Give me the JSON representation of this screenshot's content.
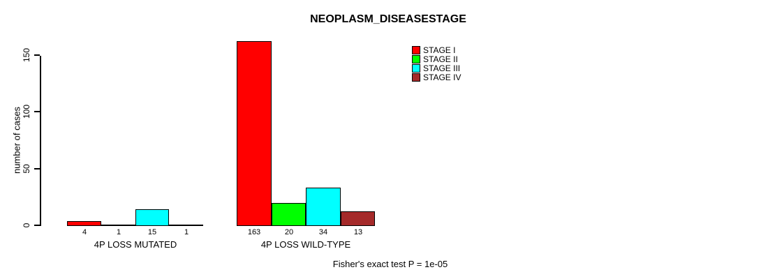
{
  "title": "NEOPLASM_DISEASESTAGE",
  "footer": "Fisher's exact test P = 1e-05",
  "chart_data": {
    "type": "bar",
    "title": "NEOPLASM_DISEASESTAGE",
    "xlabel": "",
    "ylabel": "number of cases",
    "ylim": [
      0,
      163
    ],
    "yticks": [
      0,
      50,
      100,
      150
    ],
    "grid": false,
    "legend_position": "top-right",
    "categories": [
      "4P LOSS MUTATED",
      "4P LOSS WILD-TYPE"
    ],
    "series": [
      {
        "name": "STAGE I",
        "color": "#FF0000",
        "values": [
          4,
          163
        ]
      },
      {
        "name": "STAGE II",
        "color": "#00FF00",
        "values": [
          1,
          20
        ]
      },
      {
        "name": "STAGE III",
        "color": "#00FFFF",
        "values": [
          15,
          34
        ]
      },
      {
        "name": "STAGE IV",
        "color": "#A52A2A",
        "values": [
          1,
          13
        ]
      }
    ],
    "bar_value_labels": [
      [
        4,
        1,
        15,
        1
      ],
      [
        163,
        20,
        34,
        13
      ]
    ],
    "annotation": "Fisher's exact test P = 1e-05"
  }
}
